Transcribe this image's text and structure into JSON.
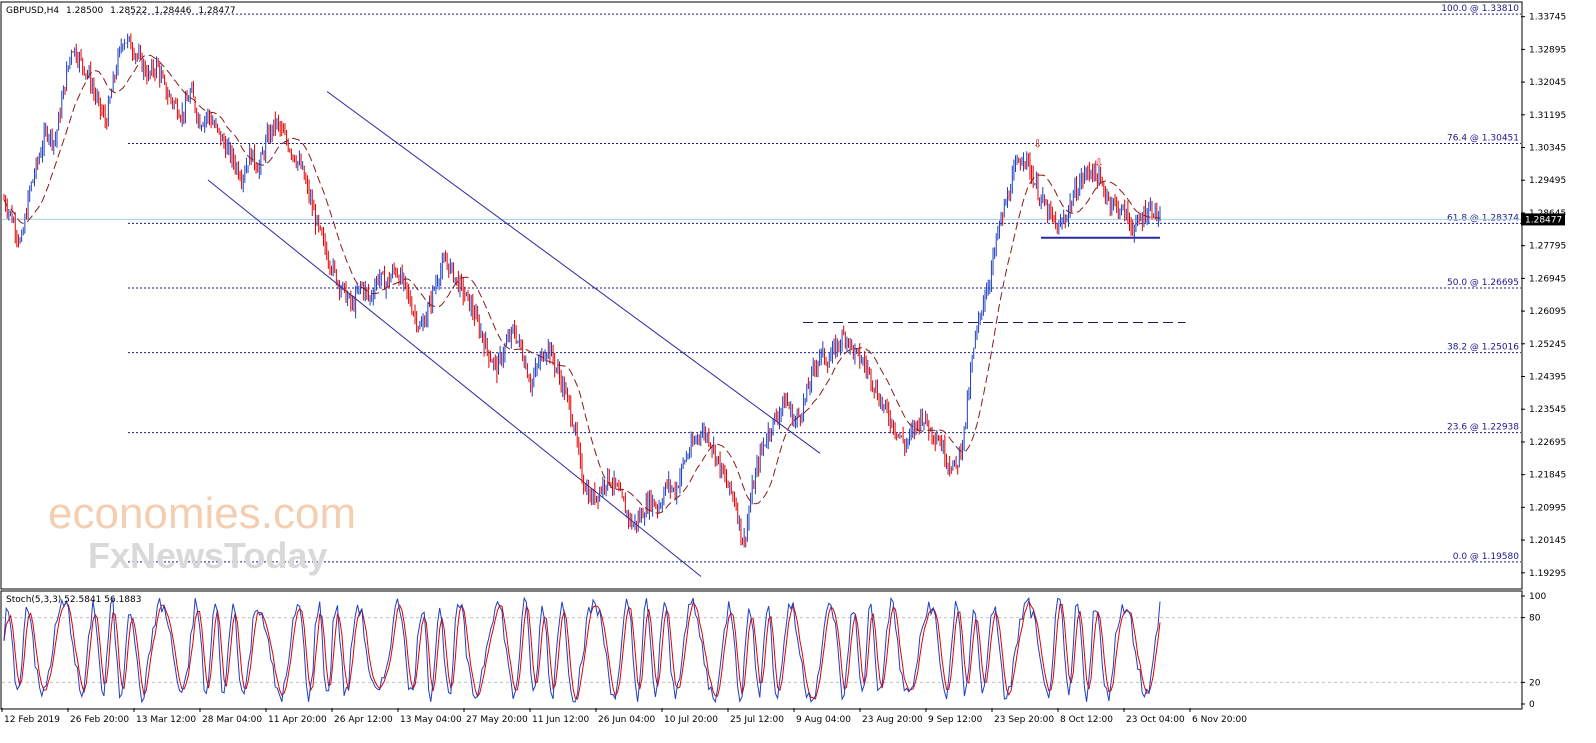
{
  "chart_data": [
    {
      "type": "line",
      "title": "GBPUSD,H4",
      "ohlc": {
        "open": "1.28500",
        "high": "1.28522",
        "low": "1.28446",
        "close": "1.28477"
      },
      "current_price": "1.28477",
      "price_axis": {
        "ticks": [
          "1.33745",
          "1.32895",
          "1.32045",
          "1.31195",
          "1.30345",
          "1.29495",
          "1.28645",
          "1.27795",
          "1.26945",
          "1.26095",
          "1.25245",
          "1.24395",
          "1.23545",
          "1.22695",
          "1.21845",
          "1.20995",
          "1.20145",
          "1.19295"
        ],
        "ylim": [
          1.189,
          1.341
        ]
      },
      "time_axis": [
        "12 Feb 2019",
        "26 Feb 20:00",
        "13 Mar 12:00",
        "28 Mar 04:00",
        "11 Apr 20:00",
        "26 Apr 12:00",
        "13 May 04:00",
        "27 May 20:00",
        "11 Jun 12:00",
        "26 Jun 04:00",
        "10 Jul 20:00",
        "25 Jul 12:00",
        "9 Aug 04:00",
        "23 Aug 20:00",
        "9 Sep 12:00",
        "23 Sep 20:00",
        "8 Oct 12:00",
        "23 Oct 04:00",
        "6 Nov 20:00"
      ],
      "fibonacci_levels": [
        {
          "label": "100.0 @ 1.33810",
          "value": 1.3381
        },
        {
          "label": "76.4 @ 1.30451",
          "value": 1.30451
        },
        {
          "label": "61.8 @ 1.28374",
          "value": 1.28374
        },
        {
          "label": "50.0 @ 1.26695",
          "value": 1.26695
        },
        {
          "label": "38.2 @ 1.25016",
          "value": 1.25016
        },
        {
          "label": "23.6 @ 1.22938",
          "value": 1.22938
        },
        {
          "label": "0.0 @ 1.19580",
          "value": 1.1958
        }
      ],
      "series": [
        {
          "price_points": [
            [
              0,
              1.29
            ],
            [
              0.5,
              1.285
            ],
            [
              1,
              1.278
            ],
            [
              1.5,
              1.292
            ],
            [
              2,
              1.3
            ],
            [
              2.5,
              1.308
            ],
            [
              3,
              1.305
            ],
            [
              3.5,
              1.318
            ],
            [
              4,
              1.33
            ],
            [
              4.5,
              1.326
            ],
            [
              5,
              1.322
            ],
            [
              5.5,
              1.315
            ],
            [
              6,
              1.31
            ],
            [
              6.5,
              1.322
            ],
            [
              7,
              1.332
            ],
            [
              7.5,
              1.33
            ],
            [
              8,
              1.326
            ],
            [
              8.5,
              1.322
            ],
            [
              9,
              1.325
            ],
            [
              9.5,
              1.318
            ],
            [
              10,
              1.315
            ],
            [
              10.5,
              1.312
            ],
            [
              11,
              1.318
            ],
            [
              11.5,
              1.31
            ],
            [
              12,
              1.312
            ],
            [
              12.5,
              1.308
            ],
            [
              13,
              1.304
            ],
            [
              13.5,
              1.3
            ],
            [
              14,
              1.296
            ],
            [
              14.5,
              1.302
            ],
            [
              15,
              1.298
            ],
            [
              15.5,
              1.306
            ],
            [
              16,
              1.31
            ],
            [
              16.5,
              1.306
            ],
            [
              17,
              1.302
            ],
            [
              17.5,
              1.298
            ],
            [
              18,
              1.29
            ],
            [
              18.5,
              1.282
            ],
            [
              19,
              1.276
            ],
            [
              19.5,
              1.27
            ],
            [
              20,
              1.266
            ],
            [
              20.5,
              1.262
            ],
            [
              21,
              1.268
            ],
            [
              21.5,
              1.264
            ],
            [
              22,
              1.27
            ],
            [
              22.5,
              1.268
            ],
            [
              23,
              1.272
            ],
            [
              23.5,
              1.268
            ],
            [
              24,
              1.262
            ],
            [
              24.5,
              1.256
            ],
            [
              25,
              1.262
            ],
            [
              25.5,
              1.27
            ],
            [
              26,
              1.274
            ],
            [
              26.5,
              1.27
            ],
            [
              27,
              1.266
            ],
            [
              27.5,
              1.262
            ],
            [
              28,
              1.256
            ],
            [
              28.5,
              1.25
            ],
            [
              29,
              1.246
            ],
            [
              29.5,
              1.252
            ],
            [
              30,
              1.256
            ],
            [
              30.5,
              1.25
            ],
            [
              31,
              1.242
            ],
            [
              31.5,
              1.248
            ],
            [
              32,
              1.252
            ],
            [
              32.5,
              1.246
            ],
            [
              33,
              1.24
            ],
            [
              33.5,
              1.232
            ],
            [
              34,
              1.218
            ],
            [
              34.5,
              1.212
            ],
            [
              35,
              1.214
            ],
            [
              35.5,
              1.218
            ],
            [
              36,
              1.215
            ],
            [
              36.5,
              1.21
            ],
            [
              37,
              1.205
            ],
            [
              37.5,
              1.208
            ],
            [
              38,
              1.212
            ],
            [
              38.5,
              1.21
            ],
            [
              39,
              1.216
            ],
            [
              39.5,
              1.214
            ],
            [
              40,
              1.222
            ],
            [
              40.5,
              1.226
            ],
            [
              41,
              1.23
            ],
            [
              41.5,
              1.228
            ],
            [
              42,
              1.222
            ],
            [
              42.5,
              1.216
            ],
            [
              43,
              1.212
            ],
            [
              43.5,
              1.2
            ],
            [
              44,
              1.214
            ],
            [
              44.5,
              1.224
            ],
            [
              45,
              1.23
            ],
            [
              45.5,
              1.234
            ],
            [
              46,
              1.238
            ],
            [
              46.5,
              1.232
            ],
            [
              47,
              1.236
            ],
            [
              47.5,
              1.244
            ],
            [
              48,
              1.25
            ],
            [
              48.5,
              1.248
            ],
            [
              49,
              1.252
            ],
            [
              49.5,
              1.255
            ],
            [
              50,
              1.25
            ],
            [
              50.5,
              1.248
            ],
            [
              51,
              1.244
            ],
            [
              51.5,
              1.238
            ],
            [
              52,
              1.234
            ],
            [
              52.5,
              1.23
            ],
            [
              53,
              1.226
            ],
            [
              53.5,
              1.23
            ],
            [
              54,
              1.234
            ],
            [
              54.5,
              1.23
            ],
            [
              55,
              1.228
            ],
            [
              55.5,
              1.222
            ],
            [
              56,
              1.22
            ],
            [
              56.5,
              1.23
            ],
            [
              57,
              1.25
            ],
            [
              57.5,
              1.262
            ],
            [
              58,
              1.27
            ],
            [
              58.5,
              1.282
            ],
            [
              59,
              1.29
            ],
            [
              59.5,
              1.298
            ],
            [
              60,
              1.302
            ],
            [
              60.5,
              1.296
            ],
            [
              61,
              1.29
            ],
            [
              61.5,
              1.286
            ],
            [
              62,
              1.282
            ],
            [
              62.5,
              1.286
            ],
            [
              63,
              1.292
            ],
            [
              63.5,
              1.296
            ],
            [
              64,
              1.298
            ],
            [
              64.5,
              1.294
            ],
            [
              65,
              1.29
            ],
            [
              65.5,
              1.288
            ],
            [
              66,
              1.286
            ],
            [
              66.5,
              1.282
            ],
            [
              67,
              1.286
            ],
            [
              67.5,
              1.288
            ],
            [
              68,
              1.2848
            ]
          ]
        }
      ],
      "channel": {
        "upper": [
          [
            19,
            1.318
          ],
          [
            48,
            1.224
          ]
        ],
        "lower": [
          [
            12,
            1.295
          ],
          [
            41,
            1.192
          ]
        ]
      },
      "support_line": 1.28,
      "resistance_line": 1.258,
      "markers": [
        "arrow-down",
        "arrow-down"
      ]
    },
    {
      "type": "line",
      "title": "Stoch(5,3,3) 52.5841 56.1883",
      "ylim": [
        0,
        100
      ],
      "ticks": [
        "100",
        "80",
        "20",
        "0"
      ],
      "levels": [
        80,
        20
      ]
    }
  ],
  "watermark": {
    "line1": "economies.com",
    "line2": "FxNewsToday"
  },
  "colors": {
    "up": "#1f3fbf",
    "down": "#e00000",
    "fib": "#1a1a8c",
    "ma": "#8b1a1a",
    "channel": "#2a2aa0",
    "stoch_k": "#1f3fbf",
    "stoch_d": "#e00000"
  }
}
